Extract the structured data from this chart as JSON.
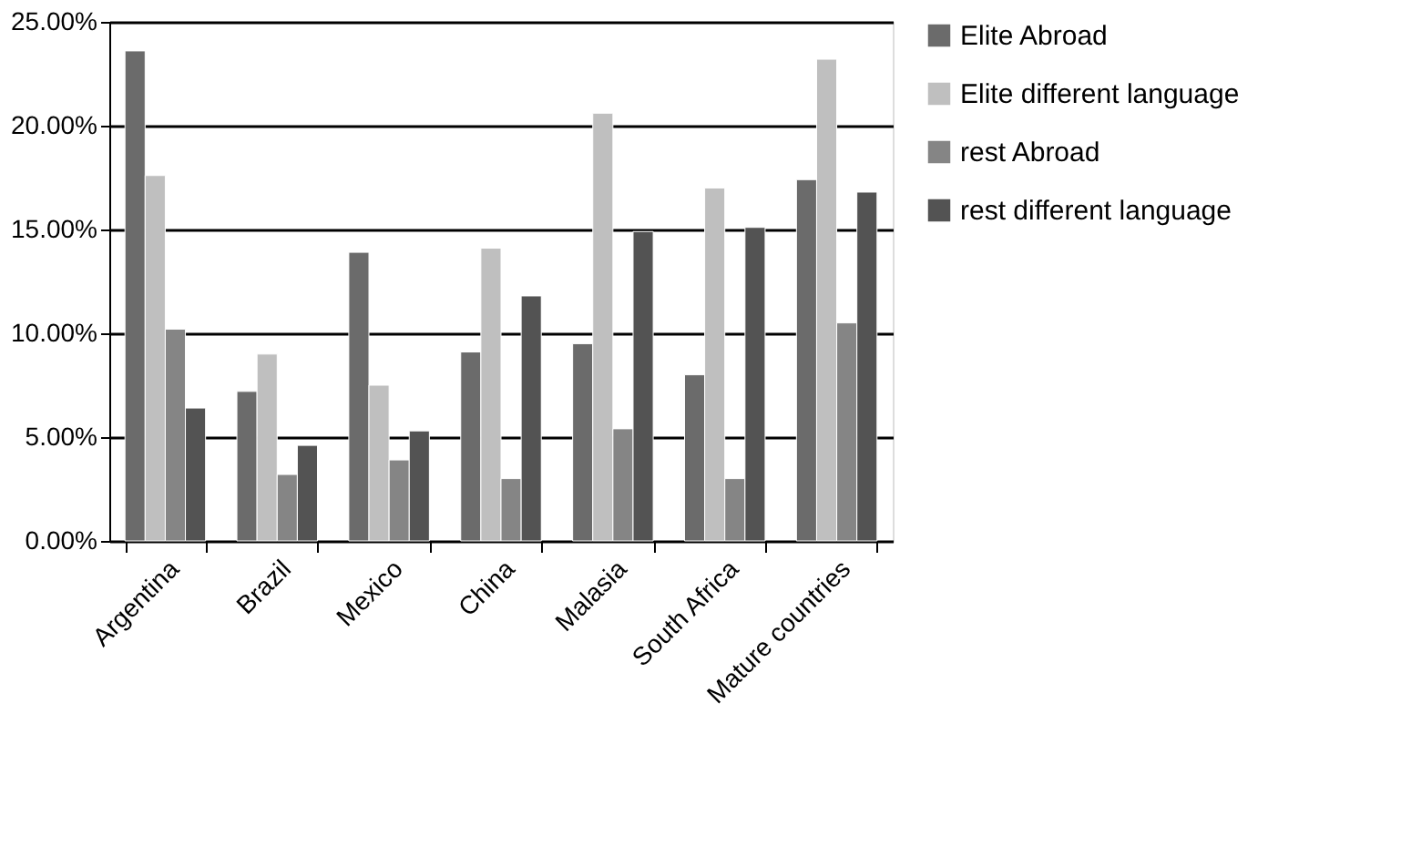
{
  "chart_data": {
    "type": "bar",
    "categories": [
      "Argentina",
      "Brazil",
      "Mexico",
      "China",
      "Malasia",
      "South Africa",
      "Mature countries"
    ],
    "series": [
      {
        "name": "Elite Abroad",
        "color": "#6b6b6b",
        "values": [
          23.6,
          7.2,
          13.9,
          9.1,
          9.5,
          8.0,
          17.4
        ]
      },
      {
        "name": "Elite different language",
        "color": "#bfbfbf",
        "values": [
          17.6,
          9.0,
          7.5,
          14.1,
          20.6,
          17.0,
          23.2
        ]
      },
      {
        "name": "rest Abroad",
        "color": "#858585",
        "values": [
          10.2,
          3.2,
          3.9,
          3.0,
          5.4,
          3.0,
          10.5
        ]
      },
      {
        "name": "rest different language",
        "color": "#535353",
        "values": [
          6.4,
          4.6,
          5.3,
          11.8,
          14.9,
          15.1,
          16.8
        ]
      }
    ],
    "ylim": [
      0,
      25
    ],
    "yticks": [
      {
        "value": 0,
        "label": "0.00%"
      },
      {
        "value": 5,
        "label": "5.00%"
      },
      {
        "value": 10,
        "label": "10.00%"
      },
      {
        "value": 15,
        "label": "15.00%"
      },
      {
        "value": 20,
        "label": "20.00%"
      },
      {
        "value": 25,
        "label": "25.00%"
      }
    ],
    "grid": "y",
    "legend": "right"
  }
}
